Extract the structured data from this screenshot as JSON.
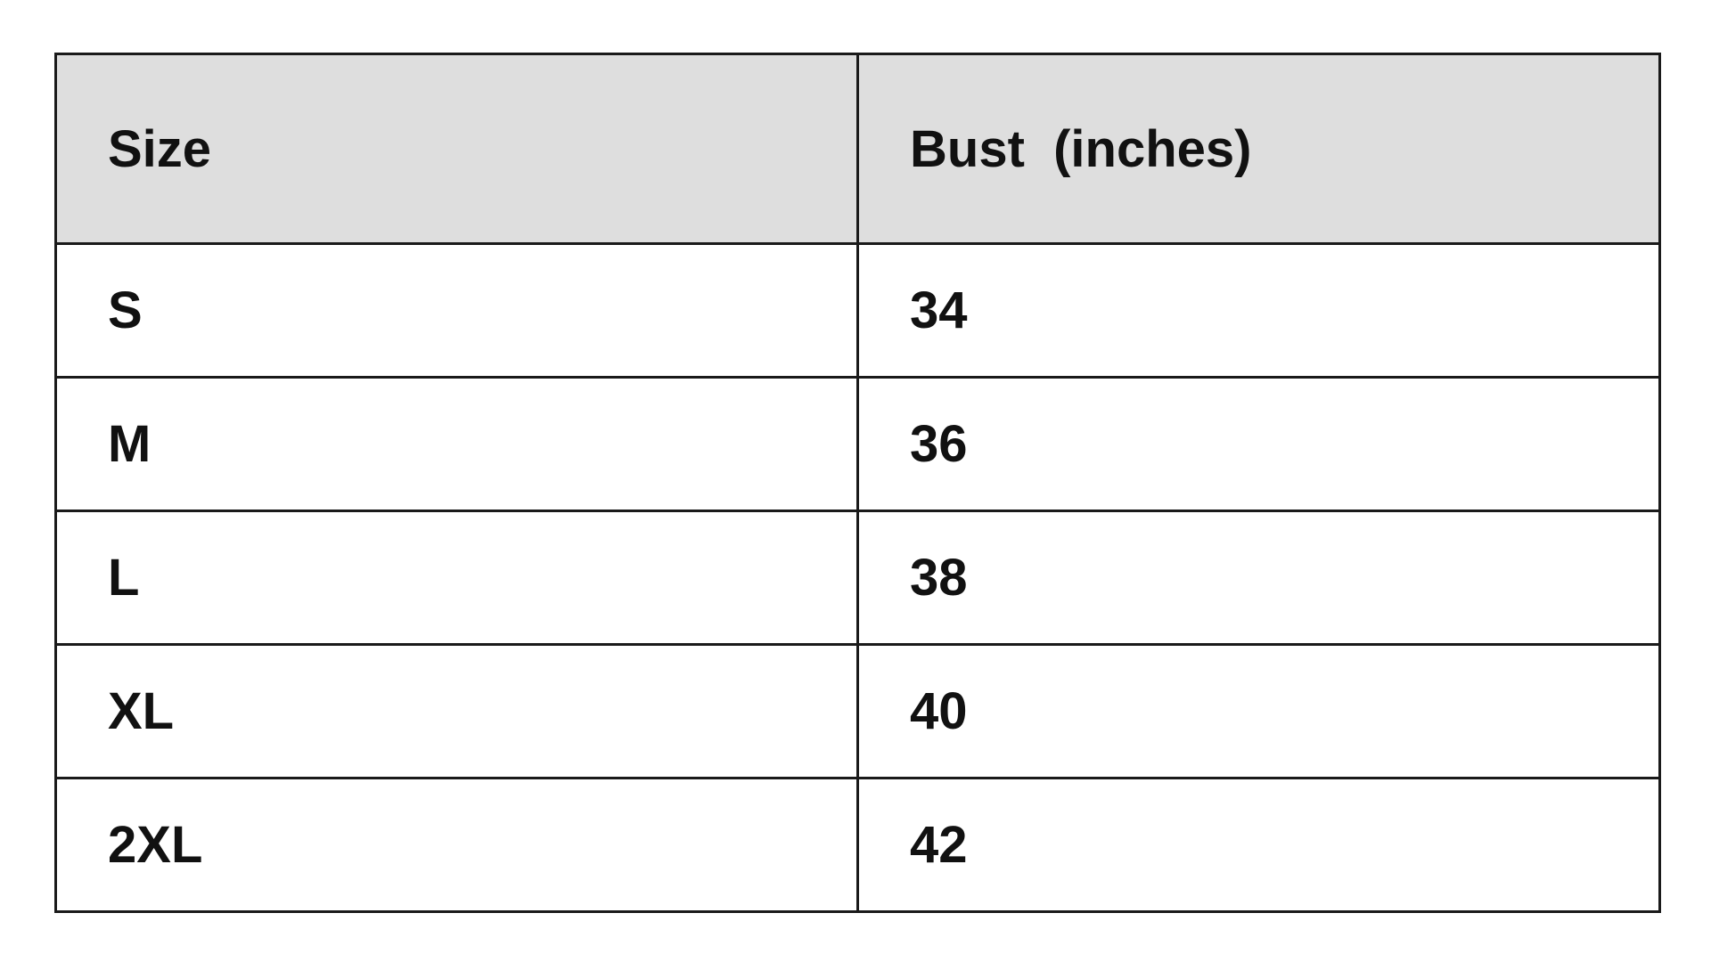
{
  "table": {
    "headers": [
      "Size",
      "Bust  (inches)"
    ],
    "rows": [
      [
        "S",
        "34"
      ],
      [
        "M",
        "36"
      ],
      [
        "L",
        "38"
      ],
      [
        "XL",
        "40"
      ],
      [
        "2XL",
        "42"
      ]
    ]
  },
  "colors": {
    "header_background": "#dedede",
    "border": "#1a1a1a"
  }
}
